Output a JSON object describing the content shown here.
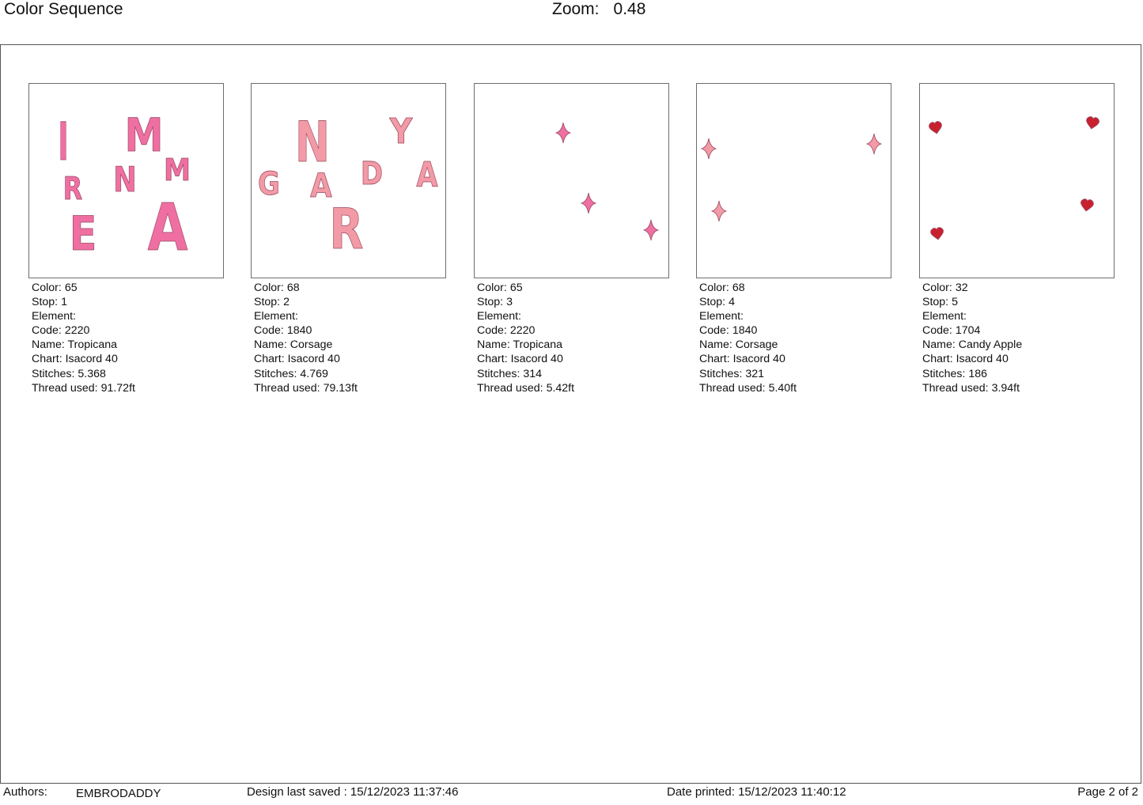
{
  "header": {
    "title": "Color Sequence",
    "zoom_label": "Zoom:",
    "zoom_value": "0.48"
  },
  "labels": {
    "color": "Color:",
    "stop": "Stop:",
    "element": "Element:",
    "code": "Code:",
    "name": "Name:",
    "chart": "Chart:",
    "stitches": "Stitches:",
    "thread": "Thread used:"
  },
  "colors": {
    "tropicana": "#ef6fa3",
    "corsage": "#f29aa6",
    "candy_apple": "#c8202f",
    "outline": "#9a4a5f"
  },
  "sequence": [
    {
      "color": "65",
      "stop": "1",
      "element": "",
      "code": "2220",
      "name": "Tropicana",
      "chart": "Isacord 40",
      "stitches": "5.368",
      "thread": "91.72ft",
      "preview_letters": [
        "I",
        "M",
        "R",
        "N",
        "M",
        "E",
        "A"
      ]
    },
    {
      "color": "68",
      "stop": "2",
      "element": "",
      "code": "1840",
      "name": "Corsage",
      "chart": "Isacord 40",
      "stitches": "4.769",
      "thread": "79.13ft",
      "preview_letters": [
        "N",
        "Y",
        "G",
        "A",
        "D",
        "A",
        "R"
      ]
    },
    {
      "color": "65",
      "stop": "3",
      "element": "",
      "code": "2220",
      "name": "Tropicana",
      "chart": "Isacord 40",
      "stitches": "314",
      "thread": "5.42ft",
      "preview_icon": "sparkle-icon"
    },
    {
      "color": "68",
      "stop": "4",
      "element": "",
      "code": "1840",
      "name": "Corsage",
      "chart": "Isacord 40",
      "stitches": "321",
      "thread": "5.40ft",
      "preview_icon": "sparkle-icon"
    },
    {
      "color": "32",
      "stop": "5",
      "element": "",
      "code": "1704",
      "name": "Candy Apple",
      "chart": "Isacord 40",
      "stitches": "186",
      "thread": "3.94ft",
      "preview_icon": "heart-icon"
    }
  ],
  "footer": {
    "authors_label": "Authors:",
    "authors_value": "EMBRODADDY",
    "saved_label": "Design last saved :",
    "saved_value": "15/12/2023 11:37:46",
    "printed_label": "Date printed:",
    "printed_value": "15/12/2023 11:40:12",
    "page_label": "Page 2 of 2"
  }
}
